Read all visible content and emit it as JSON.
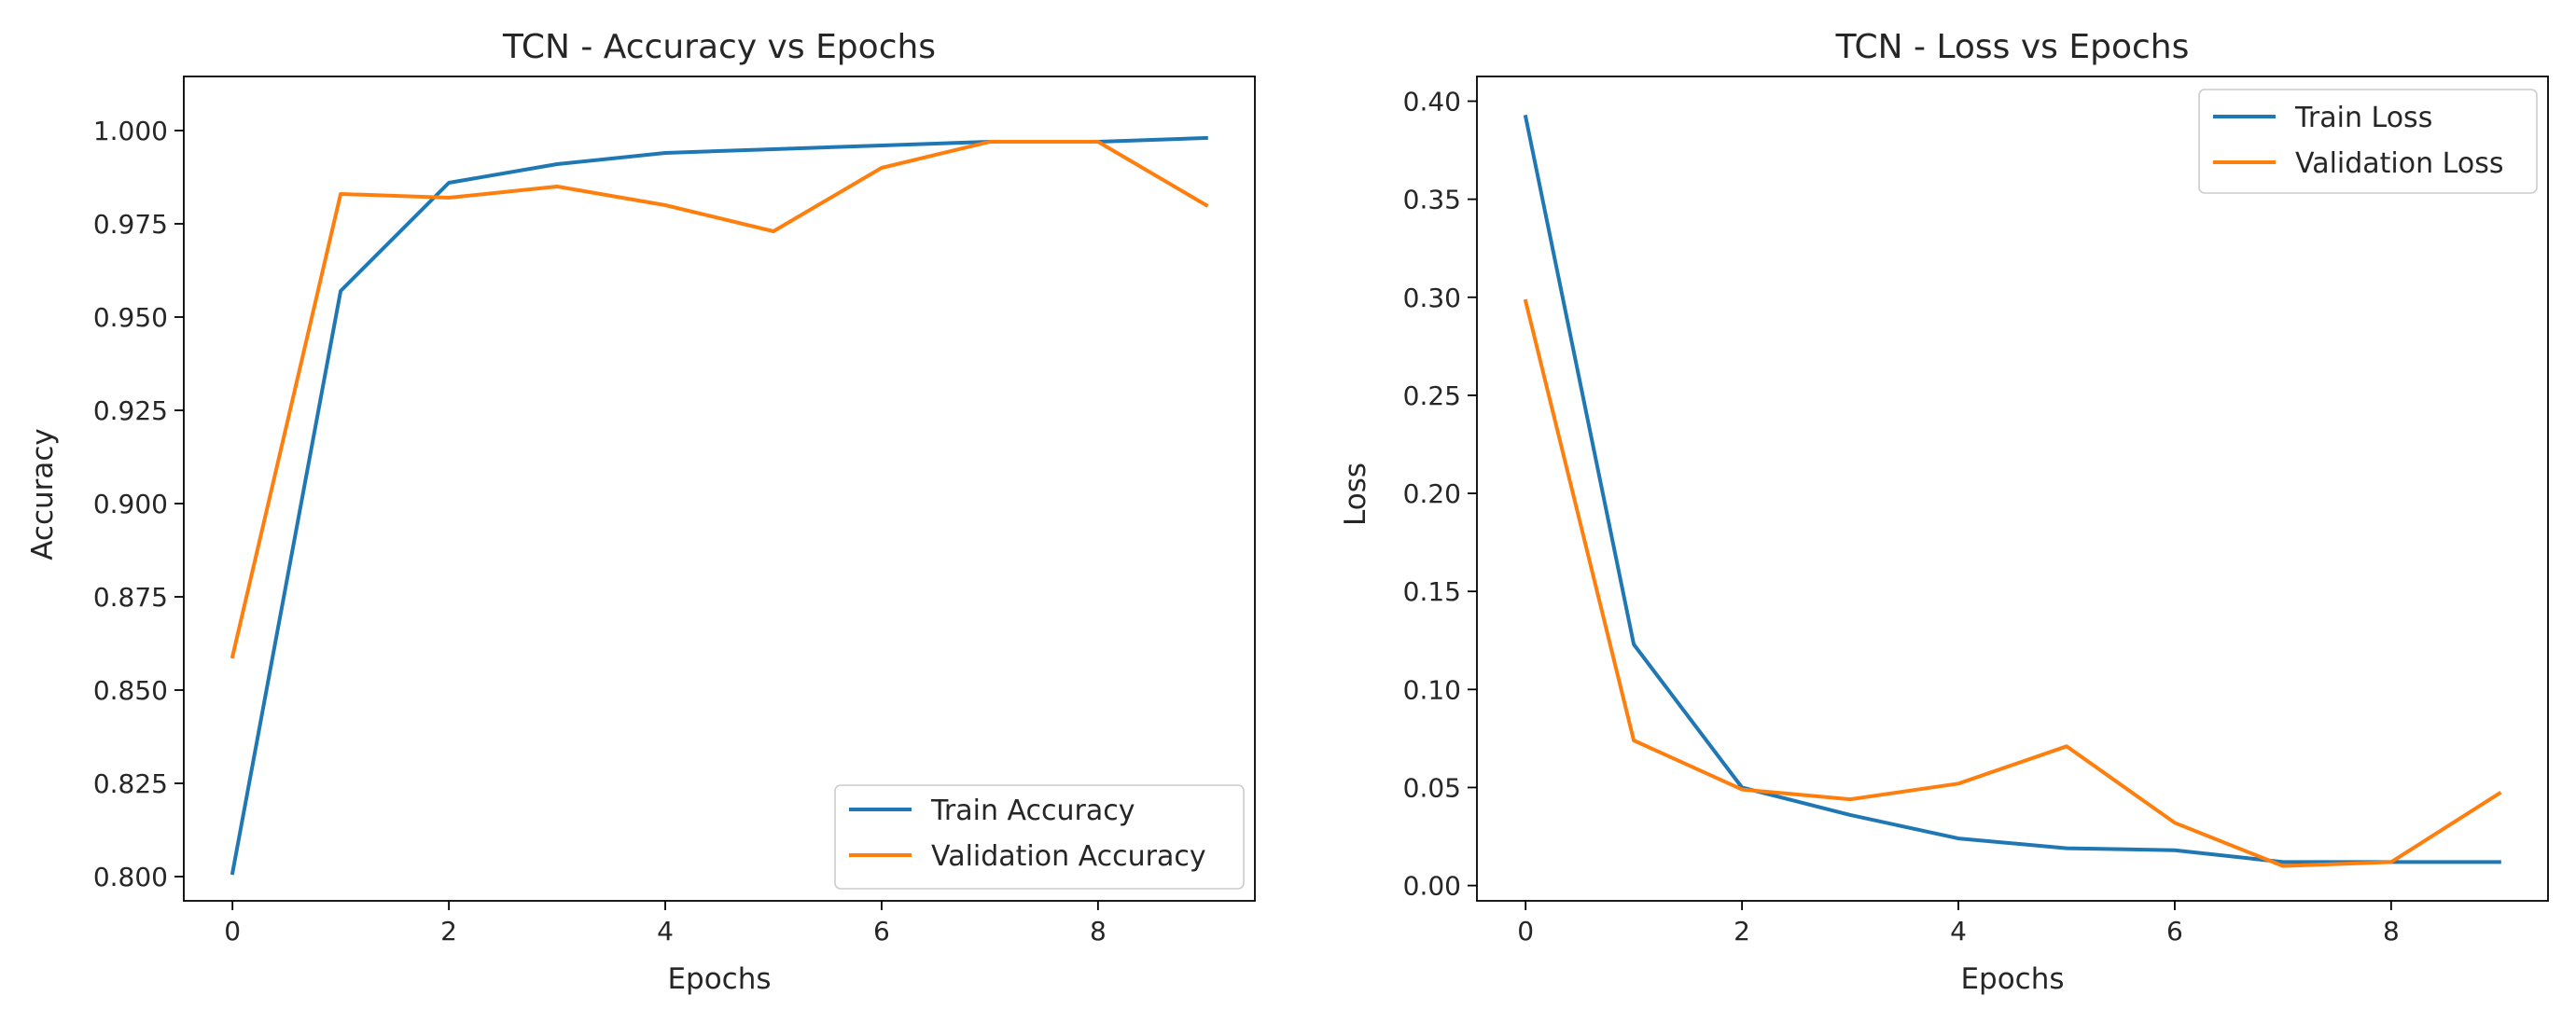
{
  "chart_data": [
    {
      "type": "line",
      "title": "TCN - Accuracy vs Epochs",
      "xlabel": "Epochs",
      "ylabel": "Accuracy",
      "x": [
        0,
        1,
        2,
        3,
        4,
        5,
        6,
        7,
        8,
        9
      ],
      "xlim": [
        -0.45,
        9.45
      ],
      "ylim": [
        0.7935,
        1.0145
      ],
      "xticks": [
        0,
        2,
        4,
        6,
        8
      ],
      "xtick_labels": [
        "0",
        "2",
        "4",
        "6",
        "8"
      ],
      "yticks": [
        0.8,
        0.825,
        0.85,
        0.875,
        0.9,
        0.925,
        0.95,
        0.975,
        1.0
      ],
      "ytick_labels": [
        "0.800",
        "0.825",
        "0.850",
        "0.875",
        "0.900",
        "0.925",
        "0.950",
        "0.975",
        "1.000"
      ],
      "grid": false,
      "legend_position": "lower-right",
      "series": [
        {
          "name": "Train Accuracy",
          "color": "#1f77b4",
          "values": [
            0.801,
            0.957,
            0.986,
            0.991,
            0.994,
            0.995,
            0.996,
            0.997,
            0.997,
            0.998
          ]
        },
        {
          "name": "Validation Accuracy",
          "color": "#ff7f0e",
          "values": [
            0.859,
            0.983,
            0.982,
            0.985,
            0.98,
            0.973,
            0.99,
            0.997,
            0.997,
            0.98
          ]
        }
      ]
    },
    {
      "type": "line",
      "title": "TCN - Loss vs Epochs",
      "xlabel": "Epochs",
      "ylabel": "Loss",
      "x": [
        0,
        1,
        2,
        3,
        4,
        5,
        6,
        7,
        8,
        9
      ],
      "xlim": [
        -0.45,
        9.45
      ],
      "ylim": [
        -0.0078,
        0.4126
      ],
      "xticks": [
        0,
        2,
        4,
        6,
        8
      ],
      "xtick_labels": [
        "0",
        "2",
        "4",
        "6",
        "8"
      ],
      "yticks": [
        0,
        0.05,
        0.1,
        0.15,
        0.2,
        0.25,
        0.3,
        0.35,
        0.4
      ],
      "ytick_labels": [
        "0.00",
        "0.05",
        "0.10",
        "0.15",
        "0.20",
        "0.25",
        "0.30",
        "0.35",
        "0.40"
      ],
      "grid": false,
      "legend_position": "upper-right",
      "series": [
        {
          "name": "Train Loss",
          "color": "#1f77b4",
          "values": [
            0.392,
            0.123,
            0.05,
            0.036,
            0.024,
            0.019,
            0.018,
            0.012,
            0.012,
            0.012
          ]
        },
        {
          "name": "Validation Loss",
          "color": "#ff7f0e",
          "values": [
            0.298,
            0.074,
            0.049,
            0.044,
            0.052,
            0.071,
            0.032,
            0.01,
            0.012,
            0.047
          ]
        }
      ]
    }
  ]
}
